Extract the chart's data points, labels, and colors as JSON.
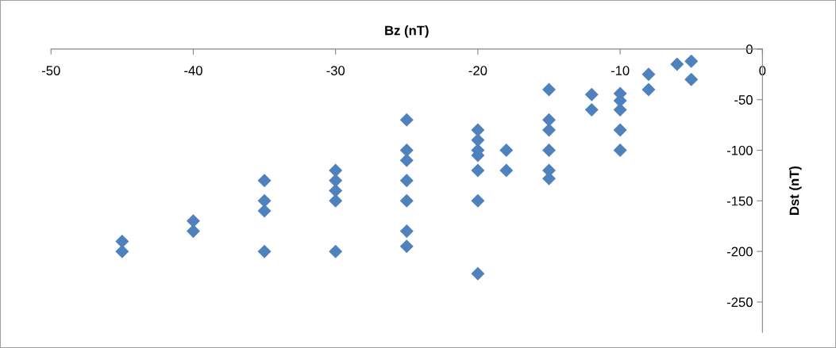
{
  "chart_data": {
    "type": "scatter",
    "xlabel": "Bz (nT)",
    "ylabel": "Dst (nT)",
    "series": [
      {
        "color": "#4f81bd",
        "x": [
          -45,
          -45,
          -40,
          -40,
          -35,
          -35,
          -35,
          -35,
          -30,
          -30,
          -30,
          -30,
          -30,
          -25,
          -25,
          -25,
          -25,
          -25,
          -25,
          -25,
          -20,
          -20,
          -20,
          -20,
          -20,
          -20,
          -20,
          -18,
          -18,
          -15,
          -15,
          -15,
          -15,
          -15,
          -15,
          -12,
          -12,
          -10,
          -10,
          -10,
          -10,
          -10,
          -8,
          -8,
          -6,
          -5,
          -5
        ],
        "values": [
          -190,
          -200,
          -170,
          -180,
          -130,
          -150,
          -160,
          -200,
          -120,
          -130,
          -140,
          -150,
          -200,
          -70,
          -100,
          -110,
          -130,
          -150,
          -180,
          -195,
          -80,
          -90,
          -100,
          -105,
          -120,
          -150,
          -222,
          -100,
          -120,
          -40,
          -70,
          -80,
          -100,
          -120,
          -128,
          -45,
          -60,
          -44,
          -51,
          -60,
          -80,
          -100,
          -25,
          -40,
          -15,
          -12,
          -30
        ]
      }
    ],
    "marker": "diamond",
    "grid": false,
    "legend": false,
    "xlim": [
      -50,
      0
    ],
    "xticks": [
      -50,
      -40,
      -30,
      -20,
      -10,
      0
    ],
    "ylim": [
      -280,
      0
    ],
    "yticks": [
      -250,
      -200,
      -150,
      -100,
      -50,
      0
    ]
  }
}
